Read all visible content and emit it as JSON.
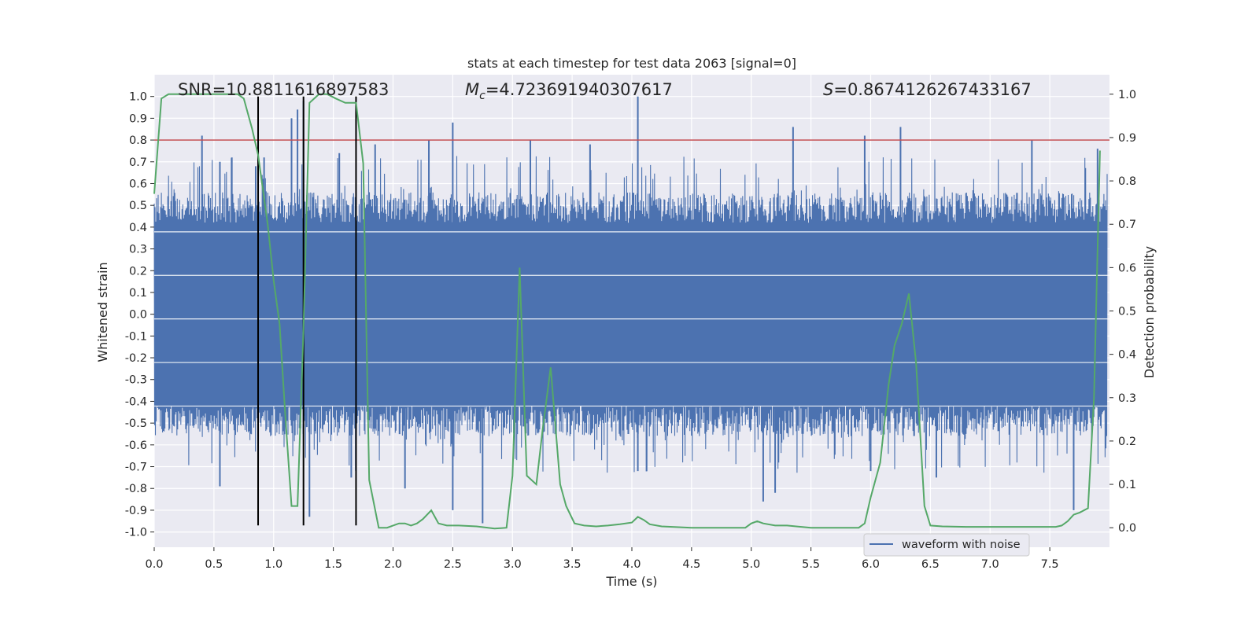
{
  "chart_data": {
    "type": "line",
    "title": "stats at each timestep for test data 2063 [signal=0]",
    "xlabel": "Time (s)",
    "ylabel": "Whitened strain",
    "y2label": "Detection probability",
    "xlim": [
      0.0,
      8.0
    ],
    "ylim": [
      -1.07,
      1.1
    ],
    "y2lim": [
      -0.045,
      1.045
    ],
    "xticks": [
      0.0,
      0.5,
      1.0,
      1.5,
      2.0,
      2.5,
      3.0,
      3.5,
      4.0,
      4.5,
      5.0,
      5.5,
      6.0,
      6.5,
      7.0,
      7.5
    ],
    "xtick_labels": [
      "0.0",
      "0.5",
      "1.0",
      "1.5",
      "2.0",
      "2.5",
      "3.0",
      "3.5",
      "4.0",
      "4.5",
      "5.0",
      "5.5",
      "6.0",
      "6.5",
      "7.0",
      "7.5"
    ],
    "yticks": [
      1.0,
      0.9,
      0.8,
      0.7,
      0.6,
      0.5,
      0.4,
      0.3,
      0.2,
      0.1,
      0.0,
      -0.1,
      -0.2,
      -0.3,
      -0.4,
      -0.5,
      -0.6,
      -0.7,
      -0.8,
      -0.9,
      -1.0
    ],
    "ytick_labels": [
      "1.0",
      "0.9",
      "0.8",
      "0.7",
      "0.6",
      "0.5",
      "0.4",
      "0.3",
      "0.2",
      "0.1",
      "0.0",
      "-0.1",
      "-0.2",
      "-0.3",
      "-0.4",
      "-0.5",
      "-0.6",
      "-0.7",
      "-0.8",
      "-0.9",
      "-1.0"
    ],
    "y2ticks": [
      1.0,
      0.9,
      0.8,
      0.7,
      0.6,
      0.5,
      0.4,
      0.3,
      0.2,
      0.1,
      0.0
    ],
    "y2tick_labels": [
      "1.0",
      "0.9",
      "0.8",
      "0.7",
      "0.6",
      "0.5",
      "0.4",
      "0.3",
      "0.2",
      "0.1",
      "0.0"
    ],
    "annotations": {
      "snr": "SNR=10.8811616897583",
      "mc_symbol": "M",
      "mc_sub": "c",
      "mc_value": "=4.723691940307617",
      "s_symbol": "S",
      "s_value": "=0.8674126267433167"
    },
    "threshold": {
      "y": 0.8,
      "color": "#c44e52"
    },
    "vertical_lines": [
      0.87,
      1.25,
      1.69
    ],
    "vline_range": [
      -0.97,
      1.0
    ],
    "legend": {
      "label": "waveform with noise",
      "loc": "lower-right"
    },
    "series": [
      {
        "name": "waveform with noise",
        "color": "#4c72b0",
        "axis": "left",
        "envelope_note": "dense noise waveform spanning approx ±0.4 to ±0.6 with spikes",
        "spikes": [
          {
            "x": 0.4,
            "y": 0.82
          },
          {
            "x": 0.55,
            "y": 0.7
          },
          {
            "x": 0.65,
            "y": 0.72
          },
          {
            "x": 0.85,
            "y": 0.68
          },
          {
            "x": 0.92,
            "y": 0.72
          },
          {
            "x": 1.15,
            "y": 0.9
          },
          {
            "x": 1.2,
            "y": 0.94
          },
          {
            "x": 1.25,
            "y": 0.98
          },
          {
            "x": 1.55,
            "y": 0.74
          },
          {
            "x": 1.85,
            "y": 0.78
          },
          {
            "x": 2.3,
            "y": 0.8
          },
          {
            "x": 2.5,
            "y": 0.88
          },
          {
            "x": 3.15,
            "y": 0.8
          },
          {
            "x": 3.65,
            "y": 0.78
          },
          {
            "x": 4.05,
            "y": 1.0
          },
          {
            "x": 5.35,
            "y": 0.86
          },
          {
            "x": 5.95,
            "y": 0.82
          },
          {
            "x": 6.25,
            "y": 0.86
          },
          {
            "x": 7.35,
            "y": 0.8
          },
          {
            "x": 7.9,
            "y": 0.76
          },
          {
            "x": 0.55,
            "y": -0.79
          },
          {
            "x": 1.3,
            "y": -0.93
          },
          {
            "x": 1.65,
            "y": -0.75
          },
          {
            "x": 2.1,
            "y": -0.8
          },
          {
            "x": 2.5,
            "y": -0.9
          },
          {
            "x": 2.75,
            "y": -0.96
          },
          {
            "x": 4.05,
            "y": -0.72
          },
          {
            "x": 5.1,
            "y": -0.86
          },
          {
            "x": 5.2,
            "y": -0.82
          },
          {
            "x": 6.0,
            "y": -0.72
          },
          {
            "x": 6.55,
            "y": -0.75
          },
          {
            "x": 7.7,
            "y": -0.9
          }
        ]
      },
      {
        "name": "detection probability",
        "color": "#55a868",
        "axis": "right",
        "x": [
          0.0,
          0.06,
          0.12,
          0.2,
          0.3,
          0.4,
          0.5,
          0.6,
          0.7,
          0.75,
          0.82,
          0.87,
          0.95,
          1.0,
          1.05,
          1.1,
          1.15,
          1.2,
          1.25,
          1.3,
          1.38,
          1.45,
          1.52,
          1.6,
          1.69,
          1.75,
          1.8,
          1.88,
          1.95,
          2.05,
          2.1,
          2.15,
          2.2,
          2.25,
          2.32,
          2.38,
          2.45,
          2.55,
          2.7,
          2.85,
          2.95,
          3.0,
          3.06,
          3.12,
          3.2,
          3.25,
          3.32,
          3.4,
          3.45,
          3.52,
          3.6,
          3.7,
          3.8,
          3.9,
          4.0,
          4.05,
          4.1,
          4.15,
          4.25,
          4.5,
          4.8,
          4.95,
          5.0,
          5.05,
          5.1,
          5.2,
          5.3,
          5.5,
          5.8,
          5.9,
          5.95,
          6.0,
          6.08,
          6.15,
          6.2,
          6.26,
          6.32,
          6.38,
          6.45,
          6.5,
          6.6,
          6.8,
          7.0,
          7.3,
          7.55,
          7.6,
          7.65,
          7.7,
          7.75,
          7.82,
          7.87,
          7.92
        ],
        "y": [
          0.77,
          0.99,
          1.0,
          1.0,
          1.0,
          1.0,
          1.0,
          1.0,
          1.0,
          0.99,
          0.92,
          0.86,
          0.7,
          0.57,
          0.47,
          0.25,
          0.05,
          0.05,
          0.46,
          0.98,
          1.0,
          1.0,
          0.99,
          0.98,
          0.98,
          0.84,
          0.11,
          0.0,
          0.0,
          0.01,
          0.01,
          0.005,
          0.01,
          0.02,
          0.04,
          0.01,
          0.005,
          0.005,
          0.003,
          -0.002,
          0.0,
          0.12,
          0.6,
          0.12,
          0.1,
          0.22,
          0.37,
          0.1,
          0.05,
          0.01,
          0.005,
          0.003,
          0.005,
          0.008,
          0.012,
          0.025,
          0.018,
          0.008,
          0.003,
          0.0,
          0.0,
          0.0,
          0.01,
          0.015,
          0.01,
          0.005,
          0.005,
          0.0,
          0.0,
          0.0,
          0.01,
          0.07,
          0.15,
          0.33,
          0.42,
          0.47,
          0.54,
          0.38,
          0.05,
          0.005,
          0.003,
          0.002,
          0.002,
          0.002,
          0.002,
          0.005,
          0.015,
          0.03,
          0.035,
          0.045,
          0.3,
          0.87
        ]
      }
    ]
  }
}
